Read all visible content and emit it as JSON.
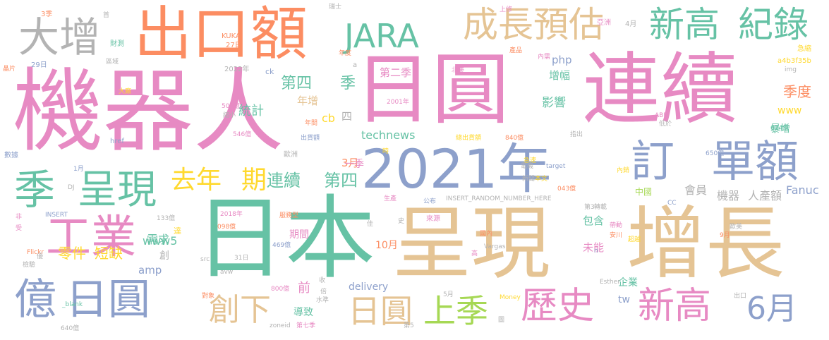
{
  "palette": {
    "pink": "#e78ac3",
    "teal": "#66c2a5",
    "blue": "#8da0cb",
    "orange": "#fc8d62",
    "tan": "#e5c494",
    "yellow": "#ffd92f",
    "green": "#a6d854",
    "gray": "#b3b3b3"
  },
  "words": [
    {
      "text": "機器人",
      "color": "pink"
    },
    {
      "text": "日圓",
      "color": "pink"
    },
    {
      "text": "連續",
      "color": "pink"
    },
    {
      "text": "日本",
      "color": "teal"
    },
    {
      "text": "呈現",
      "color": "tan"
    },
    {
      "text": "增長",
      "color": "tan"
    },
    {
      "text": "出口額",
      "color": "orange"
    },
    {
      "text": "2021年",
      "color": "blue"
    },
    {
      "text": "訂",
      "color": "blue"
    },
    {
      "text": "單額",
      "color": "blue"
    },
    {
      "text": "大增",
      "color": "gray"
    },
    {
      "text": "JARA",
      "color": "teal"
    },
    {
      "text": "成長預估",
      "color": "tan"
    },
    {
      "text": "新高",
      "color": "teal"
    },
    {
      "text": "紀錄",
      "color": "teal"
    },
    {
      "text": "季",
      "color": "teal"
    },
    {
      "text": "呈現",
      "color": "teal"
    },
    {
      "text": "工業",
      "color": "pink"
    },
    {
      "text": "億",
      "color": "blue"
    },
    {
      "text": "日圓",
      "color": "blue"
    },
    {
      "text": "去年",
      "color": "yellow"
    },
    {
      "text": "期",
      "color": "yellow"
    },
    {
      "text": "創下",
      "color": "tan"
    },
    {
      "text": "日圓",
      "color": "tan"
    },
    {
      "text": "上季",
      "color": "green"
    },
    {
      "text": "歷史",
      "color": "pink"
    },
    {
      "text": "新高",
      "color": "pink"
    },
    {
      "text": "6月",
      "color": "blue"
    },
    {
      "text": "第四",
      "color": "teal"
    },
    {
      "text": "季",
      "color": "teal"
    },
    {
      "text": "連續",
      "color": "teal"
    },
    {
      "text": "第四",
      "color": "teal"
    },
    {
      "text": "統計",
      "color": "teal"
    },
    {
      "text": "年增",
      "color": "tan"
    },
    {
      "text": "cb",
      "color": "yellow"
    },
    {
      "text": "四",
      "color": "gray"
    },
    {
      "text": "technews",
      "color": "teal"
    },
    {
      "text": "第二季",
      "color": "pink"
    },
    {
      "text": "影響",
      "color": "teal"
    },
    {
      "text": "php",
      "color": "blue"
    },
    {
      "text": "增幅",
      "color": "teal"
    },
    {
      "text": "季度",
      "color": "orange"
    },
    {
      "text": "www",
      "color": "yellow"
    },
    {
      "text": "暴增",
      "color": "teal"
    },
    {
      "text": "Fanuc",
      "color": "blue"
    },
    {
      "text": "會員",
      "color": "gray"
    },
    {
      "text": "機器",
      "color": "gray"
    },
    {
      "text": "人產額",
      "color": "gray"
    },
    {
      "text": "包含",
      "color": "teal"
    },
    {
      "text": "未能",
      "color": "pink"
    },
    {
      "text": "www5",
      "color": "teal"
    },
    {
      "text": "零件",
      "color": "yellow"
    },
    {
      "text": "短缺",
      "color": "yellow"
    },
    {
      "text": "需求",
      "color": "teal"
    },
    {
      "text": "創",
      "color": "gray"
    },
    {
      "text": "amp",
      "color": "blue"
    },
    {
      "text": "期間",
      "color": "pink"
    },
    {
      "text": "10月",
      "color": "orange"
    },
    {
      "text": "3月",
      "color": "orange"
    },
    {
      "text": "一季",
      "color": "pink"
    },
    {
      "text": "企業",
      "color": "teal"
    },
    {
      "text": "delivery",
      "color": "blue"
    },
    {
      "text": "tw",
      "color": "blue"
    },
    {
      "text": "前",
      "color": "pink"
    },
    {
      "text": "導致",
      "color": "teal"
    },
    {
      "text": "中國",
      "color": "green"
    },
    {
      "text": "3季",
      "color": "orange"
    },
    {
      "text": "首",
      "color": "gray"
    },
    {
      "text": "瑞士",
      "color": "gray"
    },
    {
      "text": "KUKA",
      "color": "orange"
    },
    {
      "text": "27日",
      "color": "orange"
    },
    {
      "text": "財測",
      "color": "teal"
    },
    {
      "text": "2022年",
      "color": "gray"
    },
    {
      "text": "29日",
      "color": "blue"
    },
    {
      "text": "區域",
      "color": "gray"
    },
    {
      "text": "a",
      "color": "gray"
    },
    {
      "text": "年度",
      "color": "orange"
    },
    {
      "text": "產品",
      "color": "orange"
    },
    {
      "text": "上修",
      "color": "pink"
    },
    {
      "text": "亞洲",
      "color": "pink"
    },
    {
      "text": "4月",
      "color": "gray"
    },
    {
      "text": "內需",
      "color": "pink"
    },
    {
      "text": "急縮",
      "color": "yellow"
    },
    {
      "text": "a4b3f35b",
      "color": "yellow"
    },
    {
      "text": "img",
      "color": "gray"
    },
    {
      "text": "北美",
      "color": "pink"
    },
    {
      "text": "ck",
      "color": "blue"
    },
    {
      "text": "晶片",
      "color": "orange"
    },
    {
      "text": "大廠",
      "color": "yellow"
    },
    {
      "text": "502億",
      "color": "pink"
    },
    {
      "text": "縮小",
      "color": "gray"
    },
    {
      "text": "2001年",
      "color": "pink"
    },
    {
      "text": "年間",
      "color": "orange"
    },
    {
      "text": "546億",
      "color": "pink"
    },
    {
      "text": "數據",
      "color": "blue"
    },
    {
      "text": "href",
      "color": "blue"
    },
    {
      "text": "歐洲",
      "color": "gray"
    },
    {
      "text": "出貨額",
      "color": "blue"
    },
    {
      "text": "總出貨額",
      "color": "yellow"
    },
    {
      "text": "840億",
      "color": "orange"
    },
    {
      "text": "指出",
      "color": "gray"
    },
    {
      "text": "低於",
      "color": "gray"
    },
    {
      "text": "ABB",
      "color": "pink"
    },
    {
      "text": "624億",
      "color": "teal"
    },
    {
      "text": "650億",
      "color": "blue"
    },
    {
      "text": "1月",
      "color": "blue"
    },
    {
      "text": "DJ",
      "color": "gray"
    },
    {
      "text": "時",
      "color": "yellow"
    },
    {
      "text": "電機",
      "color": "gray"
    },
    {
      "text": "急速",
      "color": "yellow"
    },
    {
      "text": "target",
      "color": "blue"
    },
    {
      "text": "內銷",
      "color": "yellow"
    },
    {
      "text": "新聞",
      "color": "gray"
    },
    {
      "text": "本文",
      "color": "yellow"
    },
    {
      "text": "043億",
      "color": "orange"
    },
    {
      "text": "INSERT_RANDOM_NUMBER_HERE",
      "color": "gray"
    },
    {
      "text": "INSERT",
      "color": "blue"
    },
    {
      "text": "133億",
      "color": "gray"
    },
    {
      "text": "服務型",
      "color": "orange"
    },
    {
      "text": "生產",
      "color": "pink"
    },
    {
      "text": "公布",
      "color": "blue"
    },
    {
      "text": "第3",
      "color": "gray"
    },
    {
      "text": "轉載",
      "color": "gray"
    },
    {
      "text": "CC",
      "color": "blue"
    },
    {
      "text": "歐美",
      "color": "gray"
    },
    {
      "text": "2018年",
      "color": "pink"
    },
    {
      "text": "098億",
      "color": "orange"
    },
    {
      "text": "非",
      "color": "pink"
    },
    {
      "text": "受",
      "color": "pink"
    },
    {
      "text": "達",
      "color": "yellow"
    },
    {
      "text": "佳",
      "color": "gray"
    },
    {
      "text": "史",
      "color": "gray"
    },
    {
      "text": "來源",
      "color": "pink"
    },
    {
      "text": "帶動",
      "color": "pink"
    },
    {
      "text": "安川",
      "color": "orange"
    },
    {
      "text": "9月",
      "color": "orange"
    },
    {
      "text": "國內",
      "color": "orange"
    },
    {
      "text": "超越",
      "color": "yellow"
    },
    {
      "text": "n",
      "color": "blue"
    },
    {
      "text": "469億",
      "color": "blue"
    },
    {
      "text": "Vargas",
      "color": "gray"
    },
    {
      "text": "Flickr",
      "color": "orange"
    },
    {
      "text": "src",
      "color": "gray"
    },
    {
      "text": "31日",
      "color": "gray"
    },
    {
      "text": "高",
      "color": "pink"
    },
    {
      "text": "優",
      "color": "gray"
    },
    {
      "text": "檢驗",
      "color": "gray"
    },
    {
      "text": "avw",
      "color": "gray"
    },
    {
      "text": "800億",
      "color": "pink"
    },
    {
      "text": "收",
      "color": "gray"
    },
    {
      "text": "對象",
      "color": "orange"
    },
    {
      "text": "倍",
      "color": "gray"
    },
    {
      "text": "水準",
      "color": "gray"
    },
    {
      "text": "5月",
      "color": "gray"
    },
    {
      "text": "Esther",
      "color": "gray"
    },
    {
      "text": "Money",
      "color": "yellow"
    },
    {
      "text": "出口",
      "color": "gray"
    },
    {
      "text": "_blank",
      "color": "teal"
    },
    {
      "text": "zoneid",
      "color": "gray"
    },
    {
      "text": "第七季",
      "color": "pink"
    },
    {
      "text": "第5",
      "color": "gray"
    },
    {
      "text": "圖",
      "color": "gray"
    },
    {
      "text": "640億",
      "color": "gray"
    }
  ]
}
